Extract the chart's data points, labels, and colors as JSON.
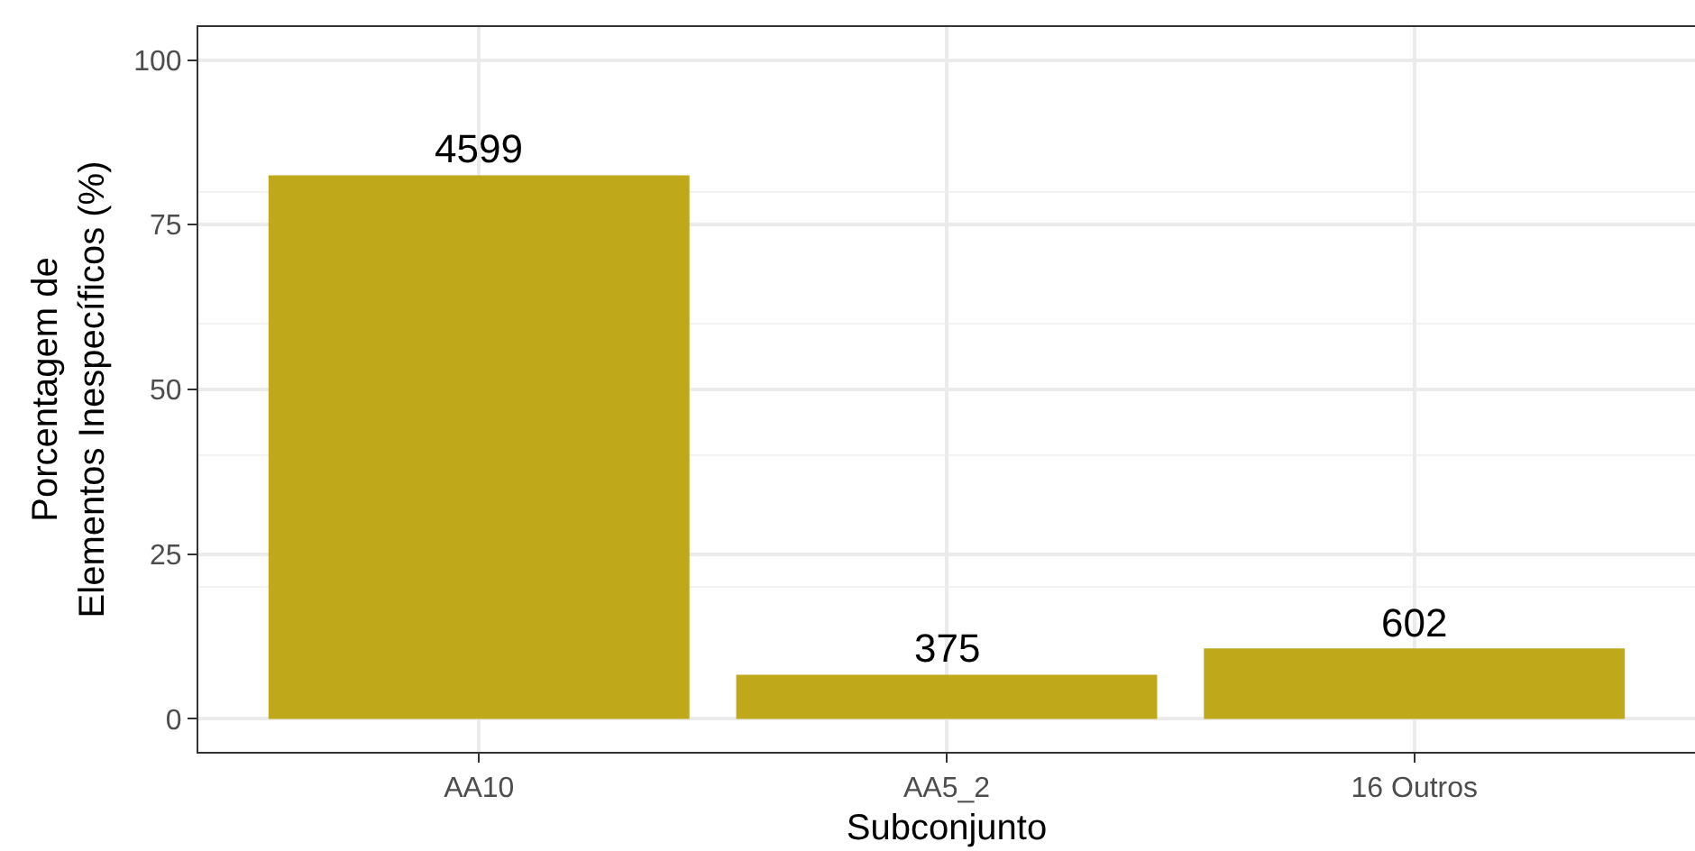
{
  "chart_data": {
    "type": "bar",
    "xlabel": "Subconjunto",
    "ylabel": "Porcentagem de\nElementos Inespecíficos (%)",
    "categories": [
      "AA10",
      "AA5_2",
      "16 Outros"
    ],
    "values": [
      82.5,
      6.7,
      10.7
    ],
    "annotations": [
      {
        "text": "4599",
        "x": "AA10",
        "y": 82.5
      },
      {
        "text": "375",
        "x": "AA5_2",
        "y": 6.7
      },
      {
        "text": "602",
        "x": "16 Outros",
        "y": 10.7
      }
    ],
    "color": "#bfa81a",
    "ylim": [
      -5,
      105
    ],
    "yticks": [
      0,
      25,
      50,
      75,
      100
    ],
    "grid": true
  }
}
